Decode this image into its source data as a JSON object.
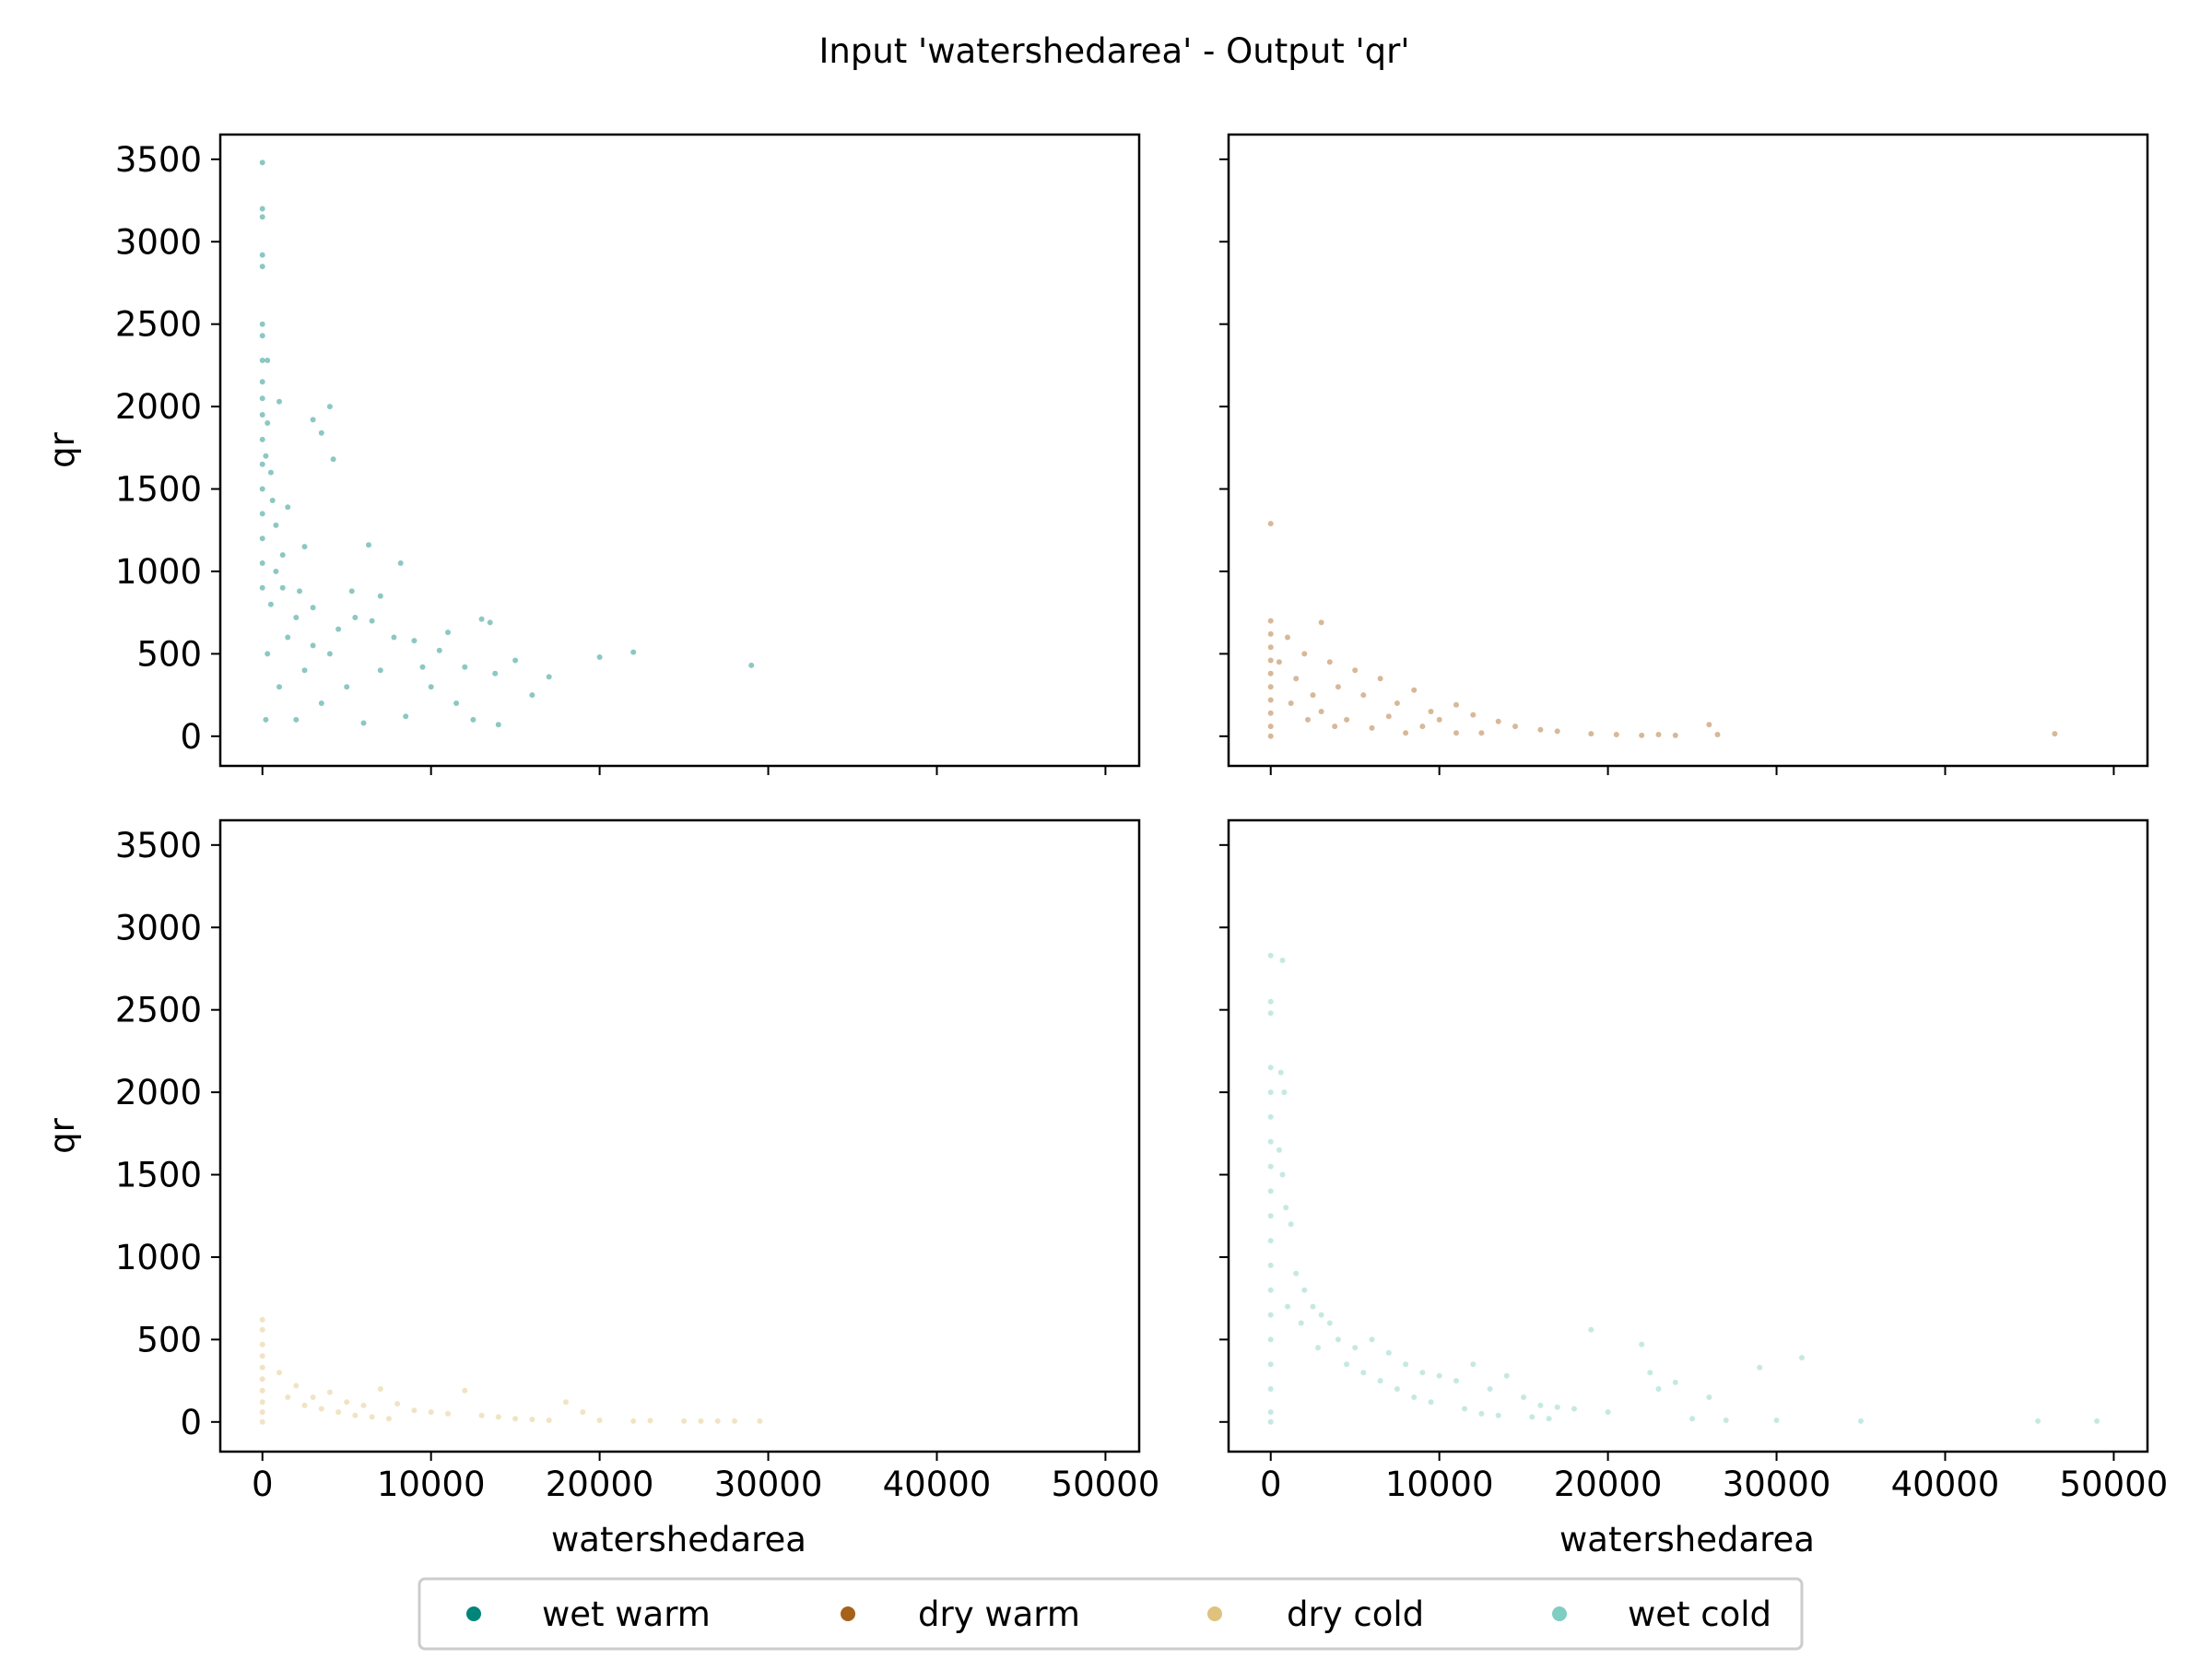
{
  "chart_data": {
    "type": "scatter",
    "title": "Input 'watershedarea' - Output 'qr'",
    "xlabel": "watershedarea",
    "ylabel": "qr",
    "xlim": [
      -2500,
      52000
    ],
    "ylim": [
      -180,
      3650
    ],
    "x_ticks": [
      0,
      10000,
      20000,
      30000,
      40000,
      50000
    ],
    "x_tick_labels": [
      "0",
      "10000",
      "20000",
      "30000",
      "40000",
      "50000"
    ],
    "y_ticks": [
      0,
      500,
      1000,
      1500,
      2000,
      2500,
      3000,
      3500
    ],
    "y_tick_labels": [
      "0",
      "500",
      "1000",
      "1500",
      "2000",
      "2500",
      "3000",
      "3500"
    ],
    "grid": false,
    "legend_position": "bottom-center",
    "series": [
      {
        "name": "wet warm",
        "color": "#01857a",
        "points": [
          [
            0,
            3480
          ],
          [
            0,
            3200
          ],
          [
            0,
            3150
          ],
          [
            0,
            2920
          ],
          [
            0,
            2850
          ],
          [
            0,
            2500
          ],
          [
            0,
            2430
          ],
          [
            0,
            2280
          ],
          [
            0,
            2150
          ],
          [
            0,
            2050
          ],
          [
            0,
            1950
          ],
          [
            0,
            1800
          ],
          [
            0,
            1650
          ],
          [
            0,
            1500
          ],
          [
            0,
            1350
          ],
          [
            0,
            1200
          ],
          [
            0,
            1050
          ],
          [
            0,
            900
          ],
          [
            300,
            2280
          ],
          [
            300,
            1900
          ],
          [
            200,
            1700
          ],
          [
            500,
            1600
          ],
          [
            600,
            1430
          ],
          [
            800,
            1280
          ],
          [
            1500,
            1390
          ],
          [
            1200,
            1100
          ],
          [
            2500,
            1150
          ],
          [
            1000,
            2030
          ],
          [
            3000,
            1920
          ],
          [
            3500,
            1840
          ],
          [
            4000,
            2000
          ],
          [
            4200,
            1680
          ],
          [
            2200,
            880
          ],
          [
            3000,
            780
          ],
          [
            5300,
            880
          ],
          [
            6300,
            1160
          ],
          [
            8200,
            1050
          ],
          [
            5500,
            720
          ],
          [
            6500,
            700
          ],
          [
            7000,
            850
          ],
          [
            7800,
            600
          ],
          [
            9000,
            580
          ],
          [
            10500,
            520
          ],
          [
            11000,
            630
          ],
          [
            13000,
            710
          ],
          [
            13500,
            690
          ],
          [
            12000,
            420
          ],
          [
            13800,
            380
          ],
          [
            15000,
            460
          ],
          [
            16000,
            250
          ],
          [
            17000,
            360
          ],
          [
            20000,
            480
          ],
          [
            22000,
            510
          ],
          [
            29000,
            430
          ],
          [
            14000,
            70
          ],
          [
            8500,
            120
          ],
          [
            10000,
            300
          ],
          [
            7000,
            400
          ],
          [
            5000,
            300
          ],
          [
            4000,
            500
          ],
          [
            3500,
            200
          ],
          [
            2500,
            400
          ],
          [
            2000,
            100
          ],
          [
            1500,
            600
          ],
          [
            1000,
            300
          ],
          [
            500,
            800
          ],
          [
            300,
            500
          ],
          [
            200,
            100
          ],
          [
            6000,
            80
          ],
          [
            9500,
            420
          ],
          [
            11500,
            200
          ],
          [
            12500,
            100
          ],
          [
            4500,
            650
          ],
          [
            3000,
            550
          ],
          [
            2000,
            720
          ],
          [
            1200,
            900
          ],
          [
            800,
            1000
          ]
        ]
      },
      {
        "name": "dry warm",
        "color": "#a6611a",
        "points": [
          [
            0,
            1290
          ],
          [
            0,
            700
          ],
          [
            0,
            620
          ],
          [
            0,
            540
          ],
          [
            0,
            460
          ],
          [
            0,
            380
          ],
          [
            0,
            300
          ],
          [
            0,
            220
          ],
          [
            0,
            140
          ],
          [
            0,
            60
          ],
          [
            0,
            0
          ],
          [
            1000,
            600
          ],
          [
            2000,
            500
          ],
          [
            3000,
            690
          ],
          [
            3500,
            450
          ],
          [
            5000,
            400
          ],
          [
            6500,
            350
          ],
          [
            5500,
            250
          ],
          [
            4000,
            300
          ],
          [
            7500,
            200
          ],
          [
            8500,
            280
          ],
          [
            9500,
            150
          ],
          [
            10000,
            100
          ],
          [
            11000,
            190
          ],
          [
            12000,
            130
          ],
          [
            13500,
            90
          ],
          [
            14500,
            60
          ],
          [
            16000,
            40
          ],
          [
            17000,
            30
          ],
          [
            19000,
            15
          ],
          [
            20500,
            10
          ],
          [
            22000,
            5
          ],
          [
            23000,
            10
          ],
          [
            24000,
            5
          ],
          [
            26000,
            70
          ],
          [
            26500,
            10
          ],
          [
            46500,
            15
          ],
          [
            1500,
            350
          ],
          [
            2500,
            250
          ],
          [
            3000,
            150
          ],
          [
            4500,
            100
          ],
          [
            6000,
            50
          ],
          [
            8000,
            20
          ],
          [
            11000,
            20
          ],
          [
            500,
            450
          ],
          [
            1200,
            200
          ],
          [
            2200,
            100
          ],
          [
            3800,
            60
          ],
          [
            7000,
            120
          ],
          [
            9000,
            60
          ],
          [
            12500,
            20
          ]
        ]
      },
      {
        "name": "dry cold",
        "color": "#dfc27d",
        "points": [
          [
            0,
            620
          ],
          [
            0,
            560
          ],
          [
            0,
            470
          ],
          [
            0,
            400
          ],
          [
            0,
            330
          ],
          [
            0,
            260
          ],
          [
            0,
            190
          ],
          [
            0,
            120
          ],
          [
            0,
            60
          ],
          [
            0,
            0
          ],
          [
            1000,
            300
          ],
          [
            2000,
            220
          ],
          [
            3000,
            150
          ],
          [
            4000,
            180
          ],
          [
            5000,
            120
          ],
          [
            6000,
            100
          ],
          [
            7000,
            200
          ],
          [
            8000,
            110
          ],
          [
            9000,
            70
          ],
          [
            10000,
            60
          ],
          [
            11000,
            50
          ],
          [
            12000,
            190
          ],
          [
            13000,
            40
          ],
          [
            14000,
            30
          ],
          [
            15000,
            20
          ],
          [
            16000,
            15
          ],
          [
            17000,
            10
          ],
          [
            18000,
            120
          ],
          [
            19000,
            60
          ],
          [
            20000,
            10
          ],
          [
            22000,
            5
          ],
          [
            23000,
            8
          ],
          [
            25000,
            5
          ],
          [
            26000,
            5
          ],
          [
            27000,
            5
          ],
          [
            28000,
            5
          ],
          [
            29500,
            5
          ],
          [
            1500,
            150
          ],
          [
            2500,
            100
          ],
          [
            3500,
            80
          ],
          [
            4500,
            60
          ],
          [
            5500,
            40
          ],
          [
            6500,
            30
          ],
          [
            7500,
            20
          ]
        ]
      },
      {
        "name": "wet cold",
        "color": "#80cdc1",
        "points": [
          [
            0,
            2830
          ],
          [
            0,
            2550
          ],
          [
            0,
            2480
          ],
          [
            0,
            2150
          ],
          [
            0,
            2000
          ],
          [
            0,
            1850
          ],
          [
            0,
            1700
          ],
          [
            0,
            1550
          ],
          [
            0,
            1400
          ],
          [
            0,
            1250
          ],
          [
            0,
            1100
          ],
          [
            0,
            950
          ],
          [
            0,
            800
          ],
          [
            0,
            650
          ],
          [
            0,
            500
          ],
          [
            0,
            350
          ],
          [
            0,
            200
          ],
          [
            0,
            60
          ],
          [
            0,
            0
          ],
          [
            700,
            2800
          ],
          [
            600,
            2120
          ],
          [
            800,
            2000
          ],
          [
            500,
            1650
          ],
          [
            700,
            1500
          ],
          [
            900,
            1300
          ],
          [
            1200,
            1200
          ],
          [
            1500,
            900
          ],
          [
            2000,
            800
          ],
          [
            2500,
            700
          ],
          [
            3000,
            650
          ],
          [
            3500,
            600
          ],
          [
            4000,
            500
          ],
          [
            5000,
            450
          ],
          [
            6000,
            500
          ],
          [
            7000,
            420
          ],
          [
            8000,
            350
          ],
          [
            9000,
            300
          ],
          [
            10000,
            280
          ],
          [
            11000,
            250
          ],
          [
            12000,
            350
          ],
          [
            13000,
            200
          ],
          [
            14000,
            280
          ],
          [
            15000,
            150
          ],
          [
            16000,
            100
          ],
          [
            17000,
            90
          ],
          [
            18000,
            80
          ],
          [
            19000,
            560
          ],
          [
            20000,
            60
          ],
          [
            22000,
            470
          ],
          [
            22500,
            300
          ],
          [
            23000,
            200
          ],
          [
            24000,
            240
          ],
          [
            25000,
            20
          ],
          [
            26000,
            150
          ],
          [
            27000,
            10
          ],
          [
            29000,
            330
          ],
          [
            30000,
            10
          ],
          [
            31500,
            390
          ],
          [
            35000,
            5
          ],
          [
            45500,
            5
          ],
          [
            49000,
            5
          ],
          [
            1000,
            700
          ],
          [
            1800,
            600
          ],
          [
            2800,
            450
          ],
          [
            4500,
            350
          ],
          [
            5500,
            300
          ],
          [
            6500,
            250
          ],
          [
            7500,
            200
          ],
          [
            8500,
            150
          ],
          [
            9500,
            120
          ],
          [
            11500,
            80
          ],
          [
            12500,
            50
          ],
          [
            13500,
            40
          ],
          [
            15500,
            30
          ],
          [
            16500,
            20
          ]
        ]
      }
    ]
  }
}
